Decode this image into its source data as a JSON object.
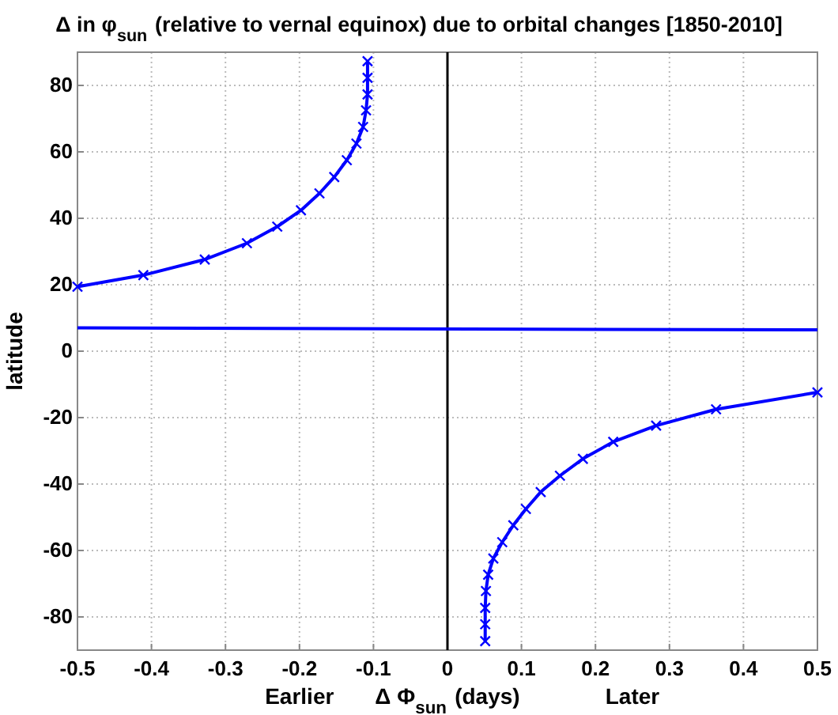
{
  "chart_data": {
    "type": "line",
    "title": "Δ in φ$_{sun}$ (relative to vernal equinox) due to orbital changes [1850-2010]",
    "xlabel": "Δ Φ$_{sun}$ (days)",
    "ylabel": "latitude",
    "annotations": [
      "Earlier",
      "Later"
    ],
    "xlim": [
      -0.5,
      0.5
    ],
    "xticks": [
      -0.5,
      -0.4,
      -0.3,
      -0.2,
      -0.1,
      0,
      0.1,
      0.2,
      0.3,
      0.4,
      0.5
    ],
    "ylim": [
      -90,
      90
    ],
    "yticks": [
      -80,
      -60,
      -40,
      -20,
      0,
      20,
      40,
      60,
      80
    ],
    "grid": true,
    "marker": "cross",
    "series": [
      {
        "color": "#0000ff",
        "x": [
          -0.5,
          -0.411,
          -0.328,
          -0.271,
          -0.23,
          -0.198,
          -0.173,
          -0.153,
          -0.136,
          -0.123,
          -0.114,
          -0.11,
          -0.108,
          -0.108,
          -0.108
        ],
        "values": [
          19.4,
          22.9,
          27.6,
          32.5,
          37.5,
          42.4,
          47.5,
          52.4,
          57.5,
          62.5,
          67.5,
          72.5,
          77.3,
          82.3,
          87.3
        ]
      },
      {
        "color": "#0000ff",
        "x": [
          0.5,
          0.363,
          0.282,
          0.224,
          0.183,
          0.152,
          0.126,
          0.106,
          0.089,
          0.074,
          0.062,
          0.055,
          0.052,
          0.051,
          0.051,
          0.051
        ],
        "values": [
          -12.4,
          -17.5,
          -22.4,
          -27.3,
          -32.4,
          -37.5,
          -42.4,
          -47.5,
          -52.4,
          -57.5,
          -62.4,
          -67.3,
          -72.2,
          -77.3,
          -82.2,
          -87.3
        ]
      },
      {
        "color": "#0000ff",
        "marker": "none",
        "x": [
          -0.5,
          0.5
        ],
        "values": [
          7.0,
          6.4
        ]
      }
    ],
    "ref_lines": [
      {
        "axis": "x",
        "value": 0,
        "color": "#000000"
      }
    ]
  }
}
